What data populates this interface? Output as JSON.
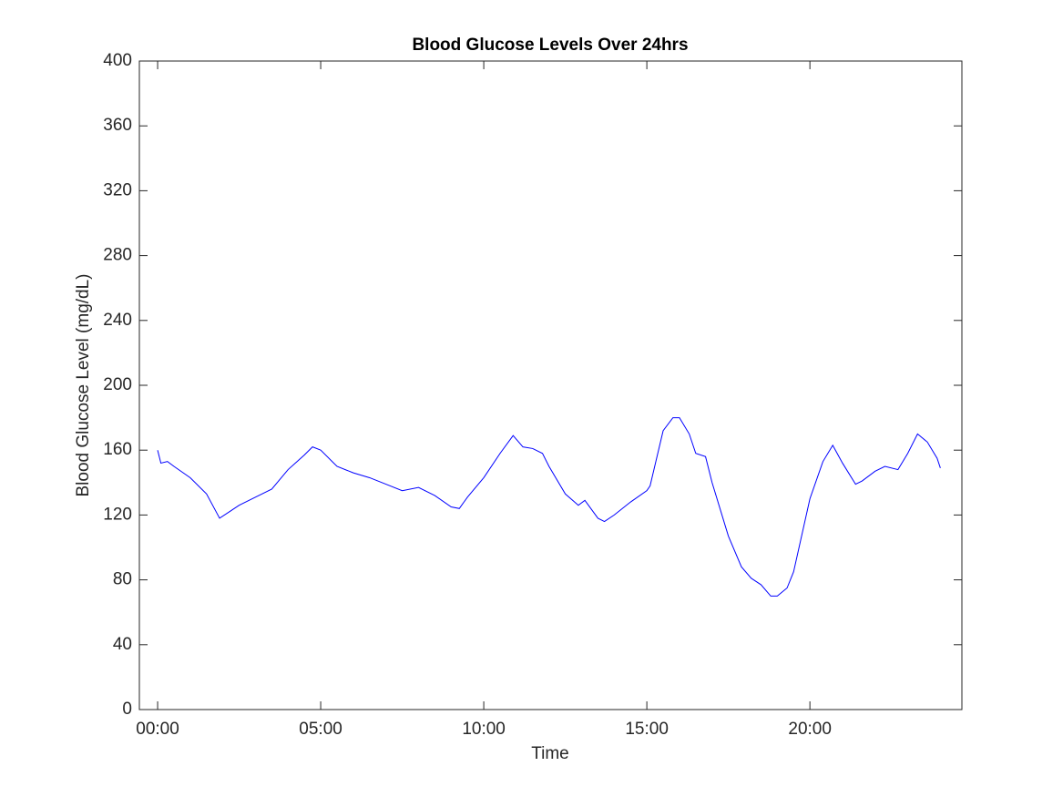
{
  "chart_data": {
    "type": "line",
    "title": "Blood Glucose Levels Over 24hrs",
    "x_label": "Time",
    "y_label": "Blood Glucose Level (mg/dL)",
    "x": [
      0,
      0.1,
      0.3,
      0.5,
      1.0,
      1.5,
      1.9,
      2.5,
      3.0,
      3.5,
      4.0,
      4.5,
      4.75,
      5.0,
      5.5,
      6.0,
      6.5,
      7.0,
      7.5,
      8.0,
      8.5,
      9.0,
      9.25,
      9.5,
      10.0,
      10.5,
      10.9,
      11.2,
      11.5,
      11.8,
      12.0,
      12.5,
      12.9,
      13.1,
      13.5,
      13.7,
      14.0,
      14.5,
      15.0,
      15.1,
      15.5,
      15.8,
      16.0,
      16.3,
      16.5,
      16.8,
      17.0,
      17.5,
      17.9,
      18.2,
      18.5,
      18.8,
      19.0,
      19.3,
      19.5,
      20.0,
      20.4,
      20.7,
      21.0,
      21.4,
      21.6,
      22.0,
      22.3,
      22.7,
      23.0,
      23.3,
      23.6,
      23.9,
      24.0
    ],
    "series": [
      {
        "name": "Blood Glucose",
        "color": "#0000ff",
        "values": [
          160,
          152,
          153,
          150,
          143,
          133,
          118,
          126,
          131,
          136,
          148,
          157,
          162,
          160,
          150,
          146,
          143,
          139,
          135,
          137,
          132,
          125,
          124,
          131,
          143,
          158,
          169,
          162,
          161,
          158,
          150,
          133,
          126,
          129,
          118,
          116,
          120,
          128,
          135,
          138,
          172,
          180,
          180,
          170,
          158,
          156,
          140,
          107,
          88,
          81,
          77,
          70,
          70,
          75,
          85,
          130,
          153,
          163,
          152,
          139,
          141,
          147,
          150,
          148,
          158,
          170,
          165,
          155,
          149
        ]
      }
    ],
    "xlim": [
      -0.56,
      24.66
    ],
    "ylim": [
      0,
      400
    ],
    "xticks": [
      {
        "value": 0,
        "label": "00:00"
      },
      {
        "value": 5,
        "label": "05:00"
      },
      {
        "value": 10,
        "label": "10:00"
      },
      {
        "value": 15,
        "label": "15:00"
      },
      {
        "value": 20,
        "label": "20:00"
      }
    ],
    "yticks": [
      0,
      40,
      80,
      120,
      160,
      200,
      240,
      280,
      320,
      360,
      400
    ],
    "grid": false
  }
}
